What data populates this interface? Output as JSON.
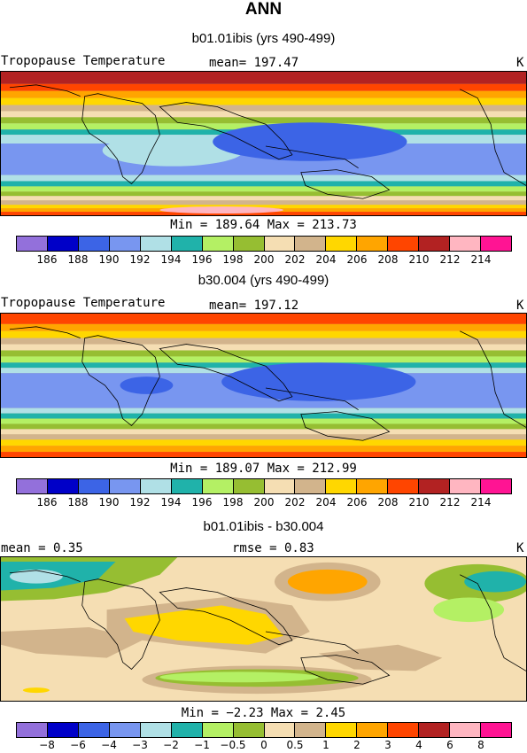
{
  "main_title": "ANN",
  "panels": [
    {
      "title": "b01.01ibis (yrs 490-499)",
      "left_label": "Tropopause Temperature",
      "mid_label": "mean=  197.47",
      "unit": "K",
      "stats": "Min = 189.64 Max = 213.73",
      "colorbar": [
        "#9370db",
        "#0000c8",
        "#3c64e6",
        "#7896f0",
        "#b0e0e6",
        "#20b2aa",
        "#b4f064",
        "#96be32",
        "#f5deb3",
        "#d2b48c",
        "#ffd700",
        "#ffa500",
        "#ff4500",
        "#b22222",
        "#ffb6c1",
        "#ff1493"
      ],
      "ticks": [
        "186",
        "188",
        "190",
        "192",
        "194",
        "196",
        "198",
        "200",
        "202",
        "204",
        "206",
        "208",
        "210",
        "212",
        "214"
      ]
    },
    {
      "title": "b30.004 (yrs 490-499)",
      "left_label": "Tropopause Temperature",
      "mid_label": "mean=  197.12",
      "unit": "K",
      "stats": "Min = 189.07 Max = 212.99",
      "colorbar": [
        "#9370db",
        "#0000c8",
        "#3c64e6",
        "#7896f0",
        "#b0e0e6",
        "#20b2aa",
        "#b4f064",
        "#96be32",
        "#f5deb3",
        "#d2b48c",
        "#ffd700",
        "#ffa500",
        "#ff4500",
        "#b22222",
        "#ffb6c1",
        "#ff1493"
      ],
      "ticks": [
        "186",
        "188",
        "190",
        "192",
        "194",
        "196",
        "198",
        "200",
        "202",
        "204",
        "206",
        "208",
        "210",
        "212",
        "214"
      ]
    },
    {
      "title": "b01.01ibis - b30.004",
      "left_label": "mean =    0.35",
      "mid_label": "rmse =    0.83",
      "unit": "K",
      "stats": "Min =  −2.23 Max =    2.45",
      "colorbar": [
        "#9370db",
        "#0000c8",
        "#3c64e6",
        "#7896f0",
        "#b0e0e6",
        "#20b2aa",
        "#b4f064",
        "#96be32",
        "#f5deb3",
        "#d2b48c",
        "#ffd700",
        "#ffa500",
        "#ff4500",
        "#b22222",
        "#ffb6c1",
        "#ff1493"
      ],
      "ticks": [
        "−8",
        "−6",
        "−4",
        "−3",
        "−2",
        "−1",
        "−0.5",
        "0",
        "0.5",
        "1",
        "2",
        "3",
        "4",
        "6",
        "8"
      ]
    }
  ]
}
